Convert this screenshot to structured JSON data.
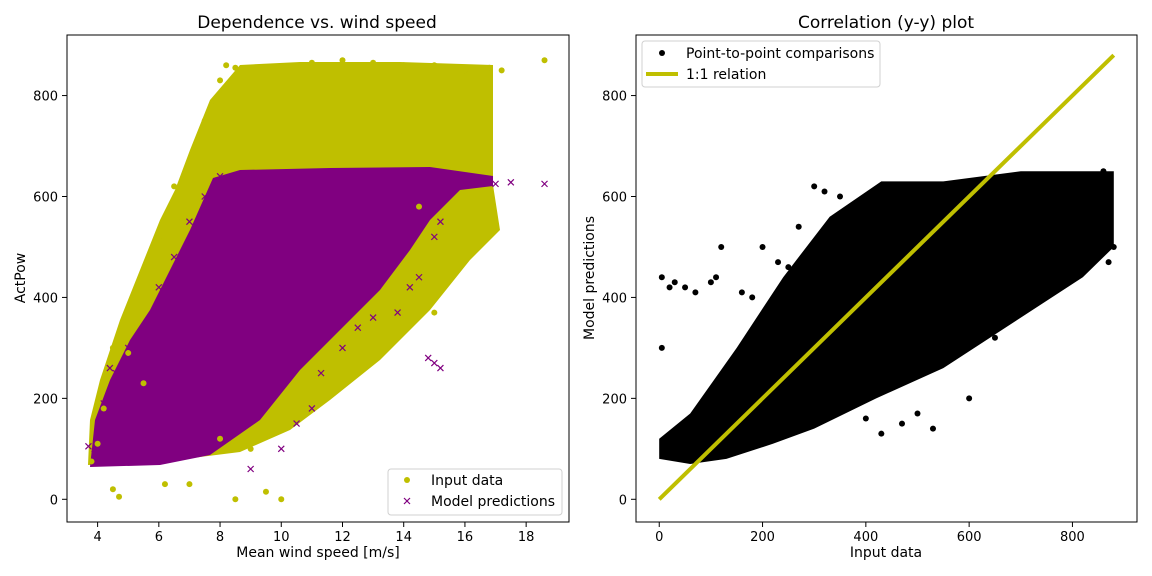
{
  "colors": {
    "input": "#bfbf00",
    "model": "#800080",
    "points": "#000000",
    "identity": "#bfbf00"
  },
  "chart_data": [
    {
      "type": "scatter",
      "title": "Dependence vs. wind speed",
      "xlabel": "Mean wind speed [m/s]",
      "ylabel": "ActPow",
      "xlim": [
        3,
        19.4
      ],
      "ylim": [
        -45,
        920
      ],
      "xticks": [
        4,
        6,
        8,
        10,
        12,
        14,
        16,
        18
      ],
      "yticks": [
        0,
        200,
        400,
        600,
        800
      ],
      "legend_position": "lower-right",
      "series": [
        {
          "name": "Input data",
          "marker": "circle",
          "points": [
            [
              3.8,
              75
            ],
            [
              4.0,
              110
            ],
            [
              4.2,
              180
            ],
            [
              4.5,
              300
            ],
            [
              4.5,
              20
            ],
            [
              4.7,
              5
            ],
            [
              5.0,
              290
            ],
            [
              5.2,
              350
            ],
            [
              5.5,
              230
            ],
            [
              5.6,
              470
            ],
            [
              5.8,
              410
            ],
            [
              6.0,
              520
            ],
            [
              6.2,
              30
            ],
            [
              6.5,
              620
            ],
            [
              6.7,
              560
            ],
            [
              7.0,
              660
            ],
            [
              7.0,
              30
            ],
            [
              7.2,
              700
            ],
            [
              7.5,
              750
            ],
            [
              7.8,
              790
            ],
            [
              8.0,
              830
            ],
            [
              8.2,
              860
            ],
            [
              8.0,
              120
            ],
            [
              8.5,
              855
            ],
            [
              8.5,
              0
            ],
            [
              9.0,
              100
            ],
            [
              9.5,
              15
            ],
            [
              10.0,
              0
            ],
            [
              11.0,
              865
            ],
            [
              12.0,
              870
            ],
            [
              13.0,
              865
            ],
            [
              14.0,
              860
            ],
            [
              15.0,
              860
            ],
            [
              16.0,
              850
            ],
            [
              16.5,
              840
            ],
            [
              16.8,
              855
            ],
            [
              17.2,
              850
            ],
            [
              18.6,
              870
            ],
            [
              14.5,
              580
            ],
            [
              15.0,
              530
            ],
            [
              15.0,
              370
            ],
            [
              14.7,
              420
            ],
            [
              14.0,
              720
            ],
            [
              15.5,
              520
            ]
          ]
        },
        {
          "name": "Model predictions",
          "marker": "x",
          "points": [
            [
              3.7,
              105
            ],
            [
              3.9,
              90
            ],
            [
              4.2,
              190
            ],
            [
              4.4,
              260
            ],
            [
              4.6,
              250
            ],
            [
              5.0,
              300
            ],
            [
              5.5,
              330
            ],
            [
              6.0,
              420
            ],
            [
              6.5,
              480
            ],
            [
              7.0,
              550
            ],
            [
              7.5,
              600
            ],
            [
              8.0,
              640
            ],
            [
              9.0,
              60
            ],
            [
              10.0,
              100
            ],
            [
              10.5,
              150
            ],
            [
              11.0,
              180
            ],
            [
              11.3,
              250
            ],
            [
              12.0,
              300
            ],
            [
              12.5,
              340
            ],
            [
              13.0,
              360
            ],
            [
              13.8,
              370
            ],
            [
              14.2,
              420
            ],
            [
              14.5,
              440
            ],
            [
              14.8,
              280
            ],
            [
              15.0,
              270
            ],
            [
              15.2,
              260
            ],
            [
              16.0,
              630
            ],
            [
              17.0,
              625
            ],
            [
              17.5,
              628
            ],
            [
              18.6,
              625
            ],
            [
              15.2,
              550
            ],
            [
              15.0,
              520
            ]
          ]
        }
      ]
    },
    {
      "type": "scatter",
      "title": "Correlation (y-y) plot",
      "xlabel": "Input data",
      "ylabel": "Model predictions",
      "xlim": [
        -45,
        925
      ],
      "ylim": [
        -45,
        920
      ],
      "xticks": [
        0,
        200,
        400,
        600,
        800
      ],
      "yticks": [
        0,
        200,
        400,
        600,
        800
      ],
      "legend_position": "upper-left",
      "series": [
        {
          "name": "Point-to-point comparisons",
          "marker": "circle",
          "points": [
            [
              5,
              440
            ],
            [
              5,
              300
            ],
            [
              20,
              420
            ],
            [
              30,
              430
            ],
            [
              50,
              420
            ],
            [
              70,
              410
            ],
            [
              100,
              430
            ],
            [
              110,
              440
            ],
            [
              120,
              500
            ],
            [
              160,
              410
            ],
            [
              180,
              400
            ],
            [
              200,
              500
            ],
            [
              230,
              470
            ],
            [
              250,
              460
            ],
            [
              270,
              540
            ],
            [
              300,
              620
            ],
            [
              320,
              610
            ],
            [
              350,
              600
            ],
            [
              380,
              560
            ],
            [
              400,
              160
            ],
            [
              430,
              130
            ],
            [
              470,
              150
            ],
            [
              500,
              170
            ],
            [
              530,
              140
            ],
            [
              600,
              200
            ],
            [
              650,
              320
            ],
            [
              700,
              450
            ],
            [
              720,
              400
            ],
            [
              750,
              500
            ],
            [
              780,
              520
            ],
            [
              800,
              560
            ],
            [
              820,
              600
            ],
            [
              840,
              640
            ],
            [
              860,
              650
            ],
            [
              870,
              470
            ],
            [
              880,
              500
            ]
          ],
          "cloud": [
            [
              [
                0,
                80
              ],
              [
                60,
                70
              ],
              [
                130,
                80
              ],
              [
                220,
                110
              ],
              [
                300,
                140
              ],
              [
                420,
                200
              ],
              [
                550,
                260
              ],
              [
                700,
                360
              ],
              [
                820,
                440
              ],
              [
                880,
                500
              ],
              [
                880,
                650
              ],
              [
                700,
                650
              ],
              [
                550,
                630
              ],
              [
                430,
                630
              ],
              [
                330,
                560
              ],
              [
                240,
                440
              ],
              [
                150,
                300
              ],
              [
                60,
                170
              ],
              [
                0,
                120
              ]
            ]
          ]
        },
        {
          "name": "1:1 relation",
          "marker": "line",
          "points": [
            [
              0,
              0
            ],
            [
              880,
              880
            ]
          ]
        }
      ]
    }
  ]
}
